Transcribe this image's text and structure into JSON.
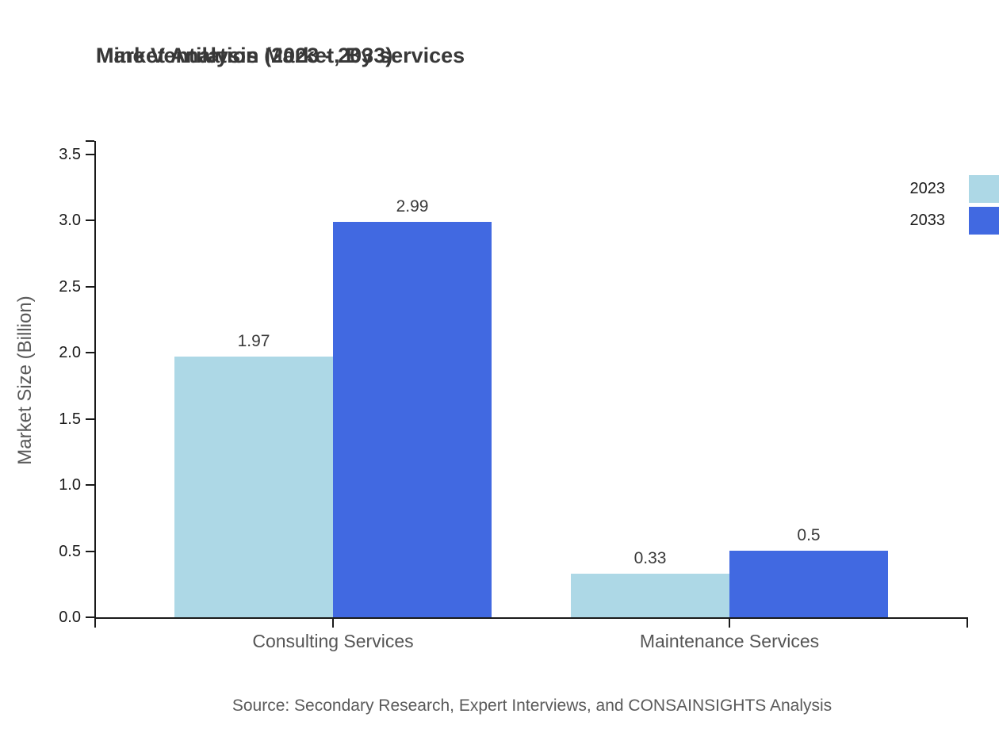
{
  "header": {
    "title_line1": "Mine Ventilation Market, By services",
    "title_line2": "Market Analysis (2023 - 2033)"
  },
  "footer": {
    "source": "Source: Secondary Research, Expert Interviews, and CONSAINSIGHTS Analysis"
  },
  "legend": {
    "position": "top-right, labels left of swatches, swatches cropped at right edge",
    "items": [
      {
        "label": "2023",
        "color": "#ADD8E6"
      },
      {
        "label": "2033",
        "color": "#4169E1"
      }
    ]
  },
  "chart_data": {
    "type": "bar",
    "title": "Mine Ventilation Market, By services\nMarket Analysis (2023 - 2033)",
    "categories": [
      "Consulting Services",
      "Maintenance Services"
    ],
    "series": [
      {
        "name": "2023",
        "color": "#ADD8E6",
        "values": [
          1.97,
          0.33
        ]
      },
      {
        "name": "2033",
        "color": "#4169E1",
        "values": [
          2.99,
          0.5
        ]
      }
    ],
    "value_labels": [
      [
        "1.97",
        "0.33"
      ],
      [
        "2.99",
        "0.5"
      ]
    ],
    "xlabel": "",
    "ylabel": "Market Size (Billion)",
    "ylim": [
      0,
      3.5
    ],
    "yticks": [
      0.0,
      0.5,
      1.0,
      1.5,
      2.0,
      2.5,
      3.0,
      3.5
    ],
    "grid": false,
    "bar_value_labels_shown": true,
    "axis_color": "#1a1a1a"
  }
}
